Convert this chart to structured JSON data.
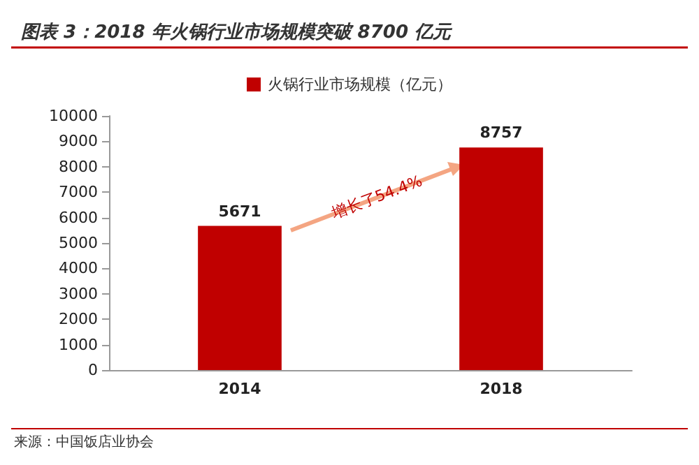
{
  "chart_data": {
    "type": "bar",
    "title": "图表 3：2018 年火锅行业市场规模突破 8700 亿元",
    "categories": [
      "2014",
      "2018"
    ],
    "series": [
      {
        "name": "火锅行业市场规模（亿元）",
        "color": "#c00000",
        "values": [
          5671,
          8757
        ]
      }
    ],
    "ylim": [
      0,
      10000
    ],
    "yticks": [
      0,
      1000,
      2000,
      3000,
      4000,
      5000,
      6000,
      7000,
      8000,
      9000,
      10000
    ],
    "data_labels": true,
    "legend": "top",
    "grid": false,
    "annotations": [
      "增长了54.4%",
      "来源：中国饭店业协会"
    ]
  }
}
